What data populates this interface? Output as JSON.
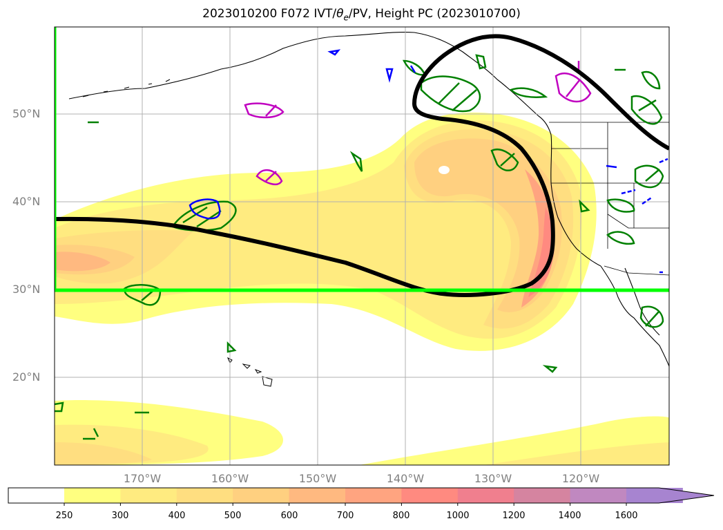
{
  "title": {
    "prefix": "2023010200 F072 IVT/",
    "theta": "θ",
    "theta_sub": "e",
    "suffix": "/PV, Height PC (2023010700)"
  },
  "lat_labels": [
    "50°N",
    "40°N",
    "30°N",
    "20°N"
  ],
  "lon_labels": [
    "170°W",
    "160°W",
    "150°W",
    "140°W",
    "130°W",
    "120°W"
  ],
  "colorbar": {
    "levels": [
      "250",
      "300",
      "400",
      "500",
      "600",
      "700",
      "800",
      "1000",
      "1200",
      "1400",
      "1600"
    ],
    "colors": [
      "#ffff80",
      "#ffeb80",
      "#ffde80",
      "#ffd080",
      "#ffb980",
      "#ffa480",
      "#ff8a80",
      "#f07f8e",
      "#d584a0",
      "#c088c0",
      "#a784d0"
    ],
    "extend": "max"
  },
  "legend_colors": {
    "height_pc": "#000000",
    "theta_e": "#008000",
    "pv": "#0000ff",
    "other": "#c000c0",
    "box": "#00ff00"
  }
}
